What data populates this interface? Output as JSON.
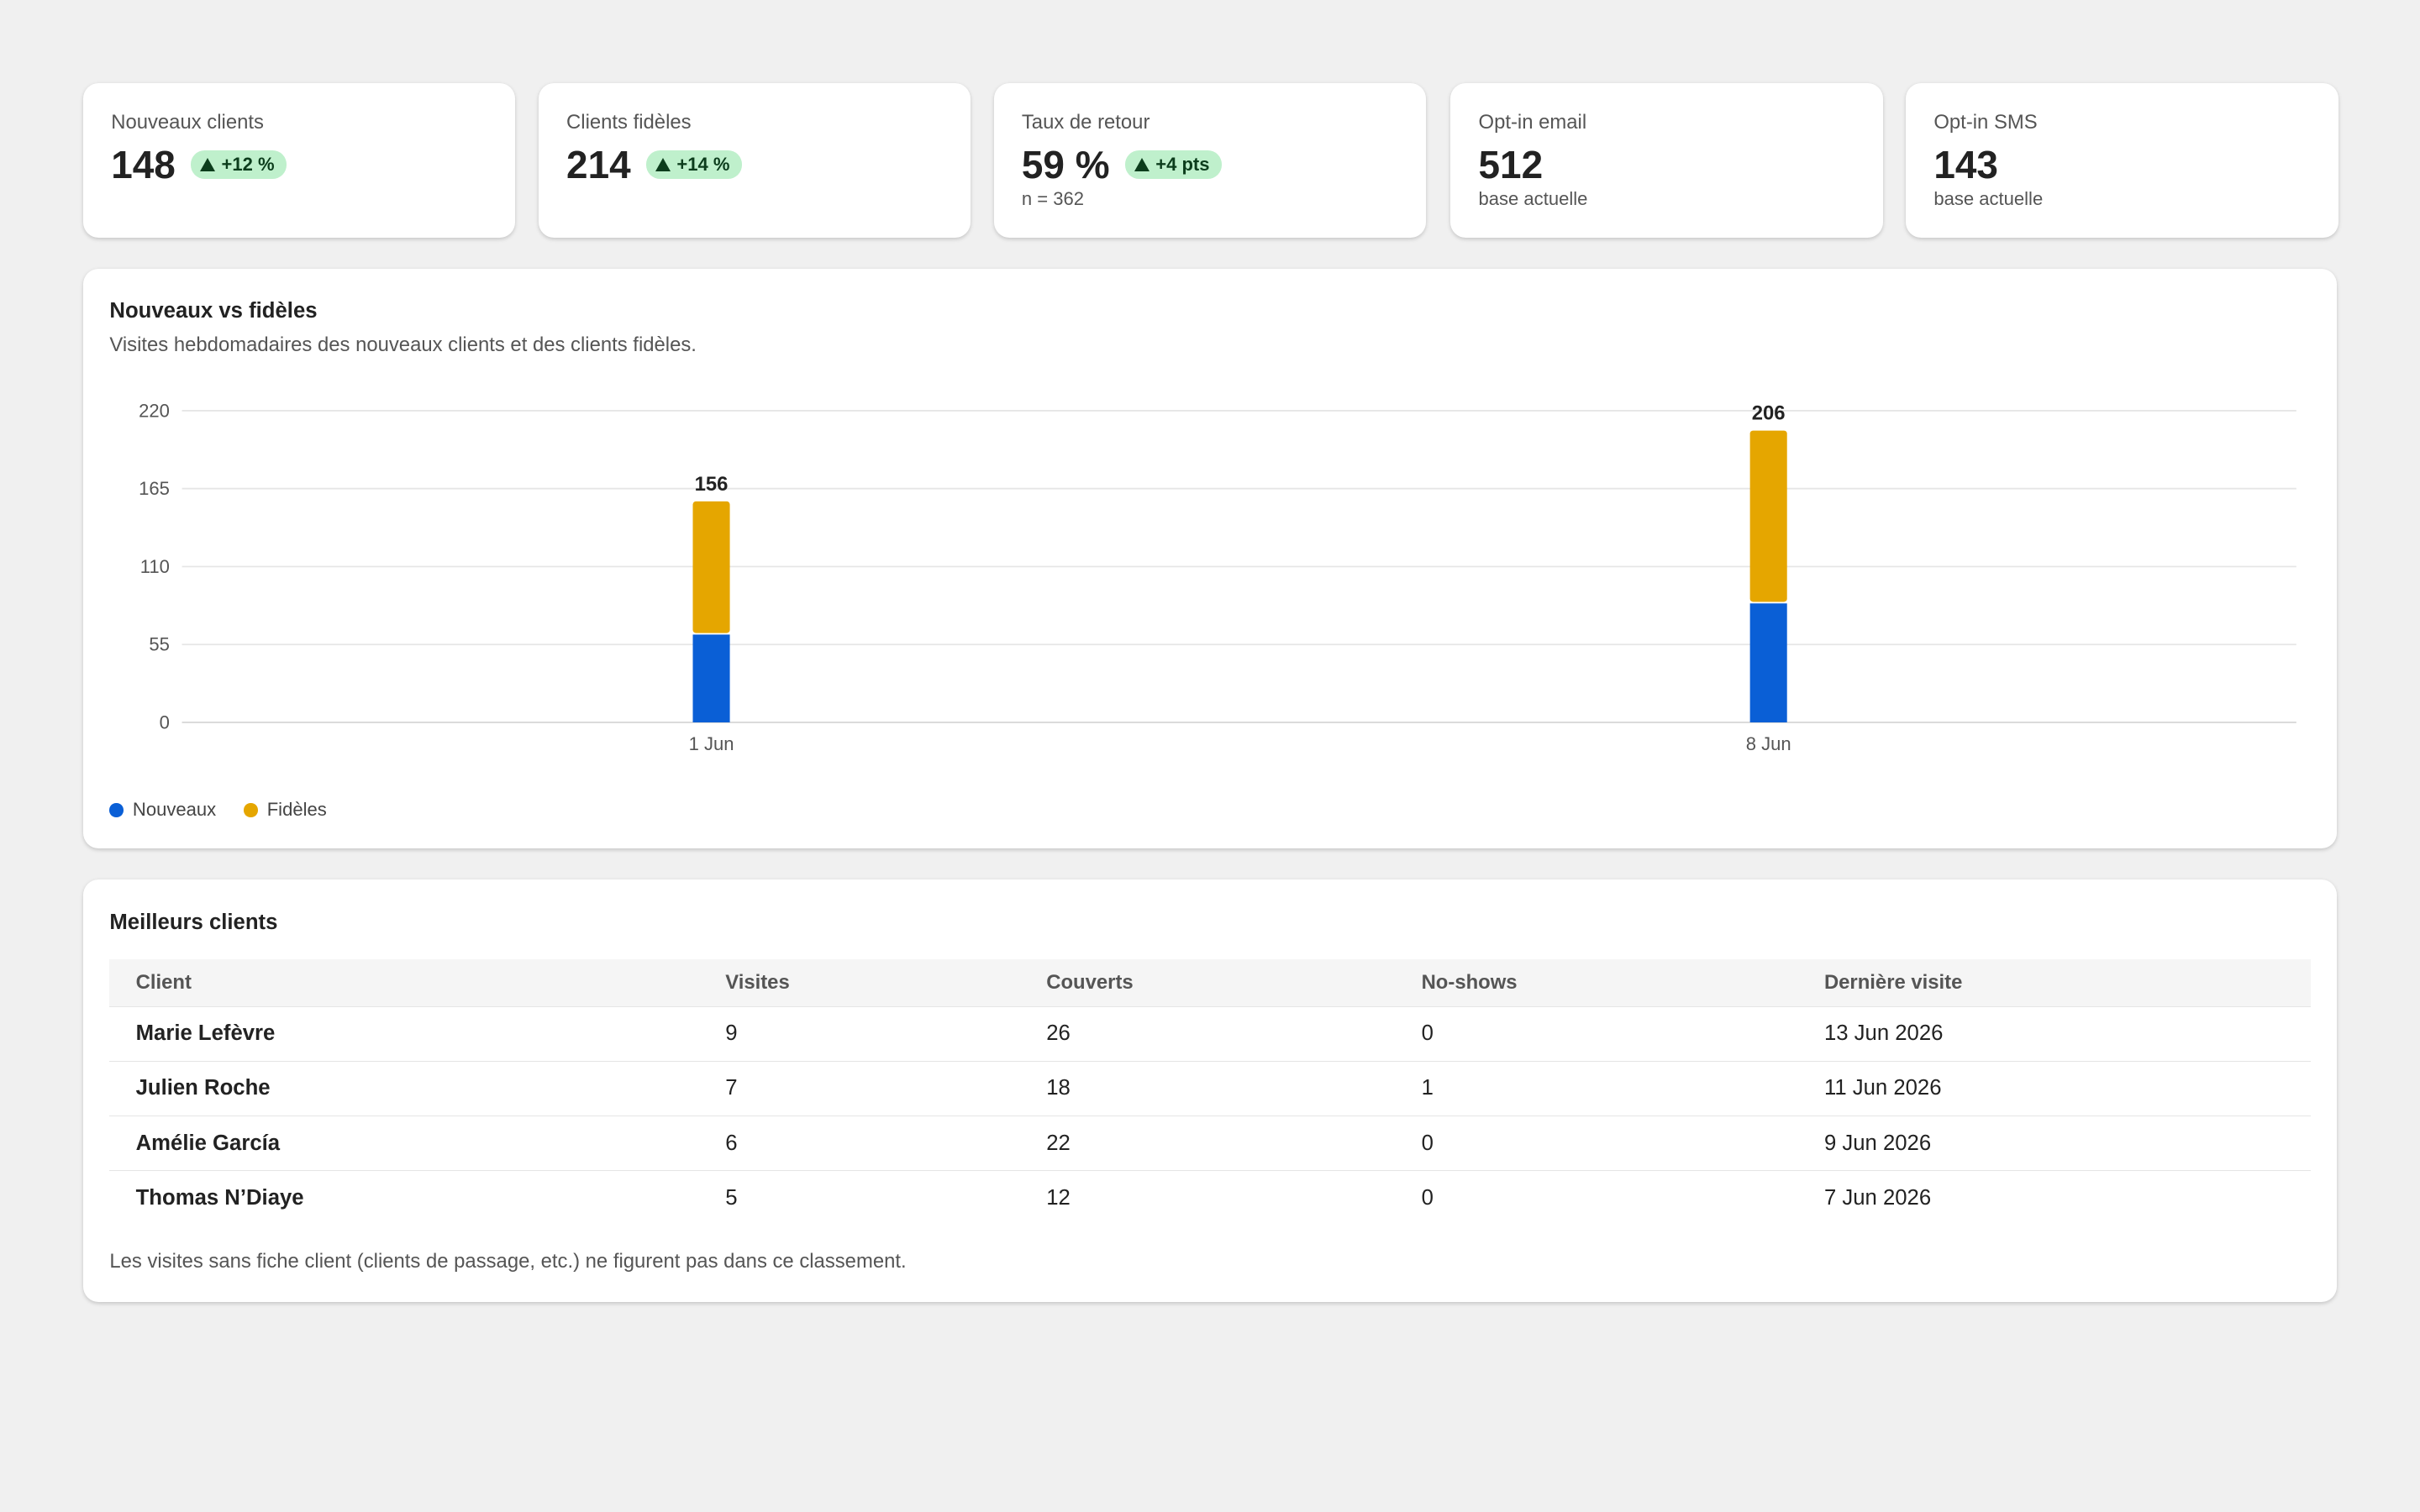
{
  "kpis": [
    {
      "label": "Nouveaux clients",
      "value": "148",
      "badge": "+12 %",
      "trend": "up",
      "sub": ""
    },
    {
      "label": "Clients fidèles",
      "value": "214",
      "badge": "+14 %",
      "trend": "up",
      "sub": ""
    },
    {
      "label": "Taux de retour",
      "value": "59 %",
      "badge": "+4 pts",
      "trend": "up",
      "sub": "n = 362"
    },
    {
      "label": "Opt-in email",
      "value": "512",
      "badge": "",
      "trend": "",
      "sub": "base actuelle"
    },
    {
      "label": "Opt-in SMS",
      "value": "143",
      "badge": "",
      "trend": "",
      "sub": "base actuelle"
    }
  ],
  "chart": {
    "title": "Nouveaux vs fidèles",
    "subtitle": "Visites hebdomadaires des nouveaux clients et des clients fidèles."
  },
  "chart_data": {
    "type": "bar",
    "stacked": true,
    "categories": [
      "1 Jun",
      "8 Jun"
    ],
    "series": [
      {
        "name": "Nouveaux",
        "color": "#0a5fd6",
        "values": [
          62,
          84
        ]
      },
      {
        "name": "Fidèles",
        "color": "#e5a600",
        "values": [
          94,
          122
        ]
      }
    ],
    "totals": [
      156,
      206
    ],
    "yticks": [
      0,
      55,
      110,
      165,
      220
    ],
    "ylim": [
      0,
      220
    ],
    "grid": true,
    "legend": "bottom-left"
  },
  "table": {
    "title": "Meilleurs clients",
    "columns": [
      "Client",
      "Visites",
      "Couverts",
      "No-shows",
      "Dernière visite"
    ],
    "rows": [
      [
        "Marie Lefèvre",
        "9",
        "26",
        "0",
        "13 Jun 2026"
      ],
      [
        "Julien Roche",
        "7",
        "18",
        "1",
        "11 Jun 2026"
      ],
      [
        "Amélie García",
        "6",
        "22",
        "0",
        "9 Jun 2026"
      ],
      [
        "Thomas N’Diaye",
        "5",
        "12",
        "0",
        "7 Jun 2026"
      ]
    ],
    "footnote": "Les visites sans fiche client (clients de passage, etc.) ne figurent pas dans ce classement."
  }
}
